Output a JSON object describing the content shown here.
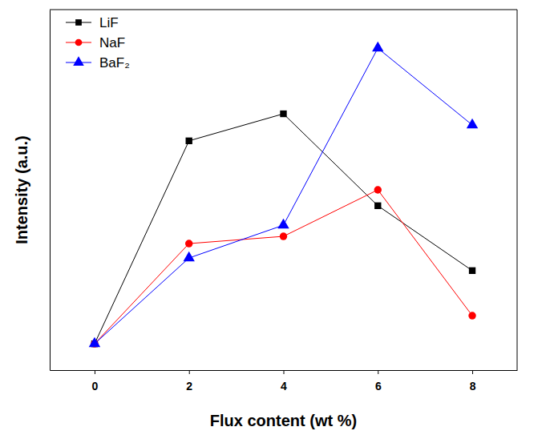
{
  "chart_data": {
    "type": "line",
    "x_label": "Flux content (wt %)",
    "y_label": "Intensity (a.u.)",
    "x": [
      0,
      2,
      4,
      6,
      8
    ],
    "xlim": [
      -0.95,
      8.95
    ],
    "xticks": [
      0,
      2,
      4,
      6,
      8
    ],
    "ylim": [
      0,
      100
    ],
    "tick_labels": "x",
    "legend": "upper left",
    "grid": false,
    "series": [
      {
        "name": "LiF",
        "color": "#000000",
        "marker": "square",
        "line_style": "solid",
        "values": [
          7.3,
          63.6,
          71.1,
          45.6,
          27.6
        ]
      },
      {
        "name": "NaF",
        "color": "#ff0000",
        "marker": "circle",
        "line_style": "solid",
        "values": [
          7.3,
          35.1,
          37.1,
          50.0,
          15.1
        ]
      },
      {
        "name": "BaF₂",
        "color": "#0000ff",
        "marker": "triangle",
        "line_style": "solid",
        "values": [
          7.3,
          31.1,
          40.2,
          89.3,
          68.0
        ]
      }
    ]
  }
}
